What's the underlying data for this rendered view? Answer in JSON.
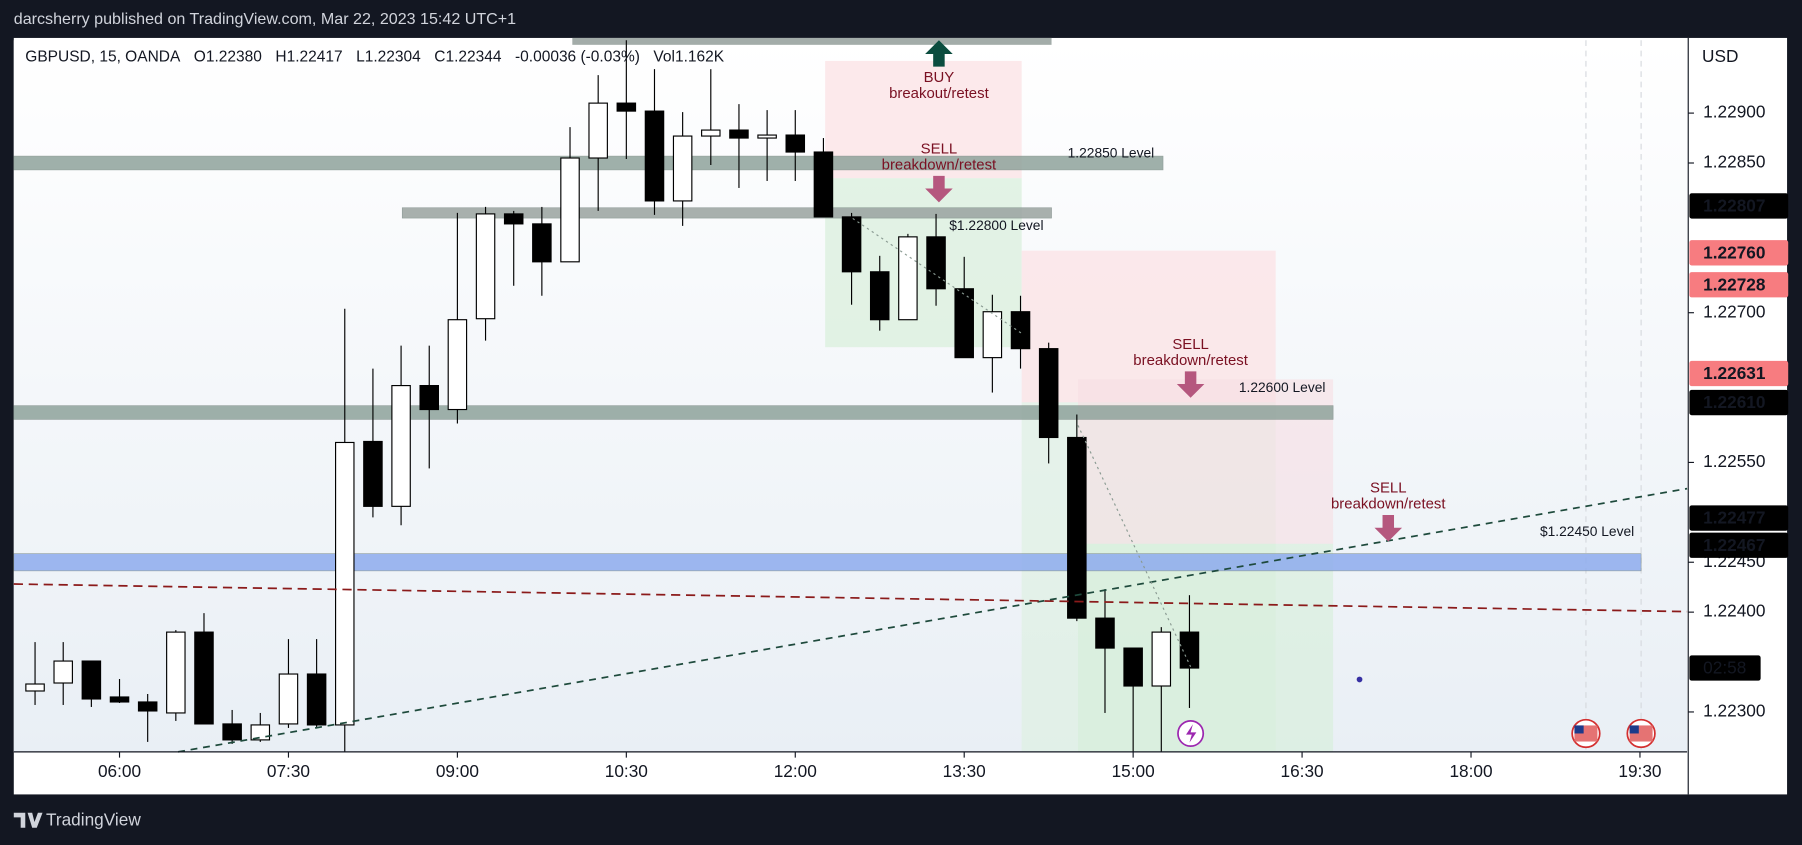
{
  "header": {
    "publisher": "darcsherry published on TradingView.com, Mar 22, 2023 15:42 UTC+1"
  },
  "chart_data": {
    "type": "candlestick",
    "symbol": "GBPUSD, 15, OANDA",
    "ohlc_legend": [
      "O1.22380",
      "H1.22417",
      "L1.22304",
      "C1.22344",
      "-0.00036 (-0.03%)",
      "Vol1.162K"
    ],
    "x": [
      "05:15",
      "05:30",
      "05:45",
      "06:00",
      "06:15",
      "06:30",
      "06:45",
      "07:00",
      "07:15",
      "07:30",
      "07:45",
      "08:00",
      "08:15",
      "08:30",
      "08:45",
      "09:00",
      "09:15",
      "09:30",
      "09:45",
      "10:00",
      "10:15",
      "10:30",
      "10:45",
      "11:00",
      "11:15",
      "11:30",
      "11:45",
      "12:00",
      "12:15",
      "12:30",
      "12:45",
      "13:00",
      "13:15",
      "13:30",
      "13:45",
      "14:00",
      "14:15",
      "14:30",
      "14:45",
      "15:00",
      "15:15",
      "15:30"
    ],
    "open": [
      1.22321,
      1.22329,
      1.22351,
      1.22315,
      1.2231,
      1.22299,
      1.2238,
      1.22288,
      1.22272,
      1.22288,
      1.22338,
      1.22287,
      1.22571,
      1.22506,
      1.22627,
      1.22603,
      1.22694,
      1.22799,
      1.22789,
      1.22751,
      1.22855,
      1.2291,
      1.22902,
      1.22812,
      1.22877,
      1.22883,
      1.22875,
      1.22878,
      1.22861,
      1.22796,
      1.22741,
      1.22693,
      1.22776,
      1.22724,
      1.22655,
      1.22701,
      1.22664,
      1.22575,
      1.22394,
      1.22364,
      1.22326,
      1.2238
    ],
    "high": [
      1.2237,
      1.2237,
      1.22351,
      1.22333,
      1.22318,
      1.22382,
      1.22399,
      1.22302,
      1.22299,
      1.22373,
      1.22373,
      1.22704,
      1.22644,
      1.22667,
      1.22667,
      1.228,
      1.22806,
      1.22802,
      1.22806,
      1.22886,
      1.22938,
      1.22973,
      1.22944,
      1.22901,
      1.22944,
      1.22909,
      1.22903,
      1.22903,
      1.22875,
      1.228,
      1.22757,
      1.22779,
      1.22799,
      1.22756,
      1.22718,
      1.22717,
      1.2267,
      1.22598,
      1.22423,
      1.22364,
      1.22385,
      1.22417
    ],
    "low": [
      1.22307,
      1.22307,
      1.22305,
      1.22309,
      1.2227,
      1.22291,
      1.22288,
      1.22268,
      1.2227,
      1.22284,
      1.22285,
      1.2226,
      1.22495,
      1.22487,
      1.22544,
      1.22589,
      1.22672,
      1.22727,
      1.22717,
      1.22751,
      1.22802,
      1.22854,
      1.22798,
      1.22787,
      1.22848,
      1.22825,
      1.22832,
      1.22832,
      1.22796,
      1.22708,
      1.22682,
      1.22693,
      1.22707,
      1.22655,
      1.2262,
      1.22644,
      1.22549,
      1.22391,
      1.22299,
      1.2226,
      1.2226,
      1.22304
    ],
    "close": [
      1.22328,
      1.22351,
      1.22313,
      1.2231,
      1.22301,
      1.2238,
      1.22288,
      1.22272,
      1.22287,
      1.22338,
      1.22287,
      1.2257,
      1.22506,
      1.22627,
      1.22603,
      1.22693,
      1.22799,
      1.22789,
      1.22751,
      1.22855,
      1.2291,
      1.22902,
      1.22812,
      1.22877,
      1.22883,
      1.22875,
      1.22878,
      1.22861,
      1.22796,
      1.22741,
      1.22693,
      1.22776,
      1.22724,
      1.22655,
      1.22701,
      1.22664,
      1.22575,
      1.22394,
      1.22364,
      1.22326,
      1.2238,
      1.22344
    ],
    "up_color": "#ffffff",
    "down_color": "#000000",
    "ylim": [
      1.2226,
      1.22973
    ],
    "yticks": [
      {
        "value": 1.229,
        "label": "1.22900"
      },
      {
        "value": 1.2285,
        "label": "1.22850"
      },
      {
        "value": 1.227,
        "label": "1.22700"
      },
      {
        "value": 1.2255,
        "label": "1.22550"
      },
      {
        "value": 1.2245,
        "label": "1.22450"
      },
      {
        "value": 1.224,
        "label": "1.22400"
      },
      {
        "value": 1.223,
        "label": "1.22300"
      }
    ],
    "xticks": [
      "06:00",
      "07:30",
      "09:00",
      "10:30",
      "12:00",
      "13:30",
      "15:00",
      "16:30",
      "18:00",
      "19:30"
    ],
    "currency": "USD",
    "price_labels": [
      {
        "value": 1.22807,
        "label": "1.22807",
        "color": "#000000"
      },
      {
        "value": 1.2276,
        "label": "1.22760",
        "color": "#f77c80"
      },
      {
        "value": 1.22728,
        "label": "1.22728",
        "color": "#f77c80"
      },
      {
        "value": 1.22631,
        "label": "1.22631",
        "color": "#f77c80"
      },
      {
        "value": 1.2261,
        "label": "1.22610",
        "color": "#000000"
      },
      {
        "value": 1.22477,
        "label": "1.22477",
        "color": "#000000"
      },
      {
        "value": 1.22467,
        "label": "1.22467",
        "color": "#000000"
      }
    ],
    "countdown": "02:58",
    "levels": [
      {
        "label": "1.22850 Level",
        "value": 1.2285,
        "color": "#8fa39c"
      },
      {
        "label": "$1.22800 Level",
        "value": 1.228,
        "color": "#9aa3a0"
      },
      {
        "label": "1.22600 Level",
        "value": 1.226,
        "color": "#8fa39c"
      },
      {
        "label": "$1.22450 Level",
        "value": 1.2245,
        "color": "#8eacee"
      }
    ],
    "annotations": [
      {
        "text": "BUY",
        "subtext": "breakout/retest",
        "direction": "up"
      },
      {
        "text": "SELL",
        "subtext": "breakdown/retest",
        "direction": "down"
      },
      {
        "text": "SELL",
        "subtext": "breakdown/retest",
        "direction": "down"
      },
      {
        "text": "SELL",
        "subtext": "breakdown/retest",
        "direction": "down"
      }
    ]
  },
  "footer": {
    "brand": "TradingView"
  }
}
